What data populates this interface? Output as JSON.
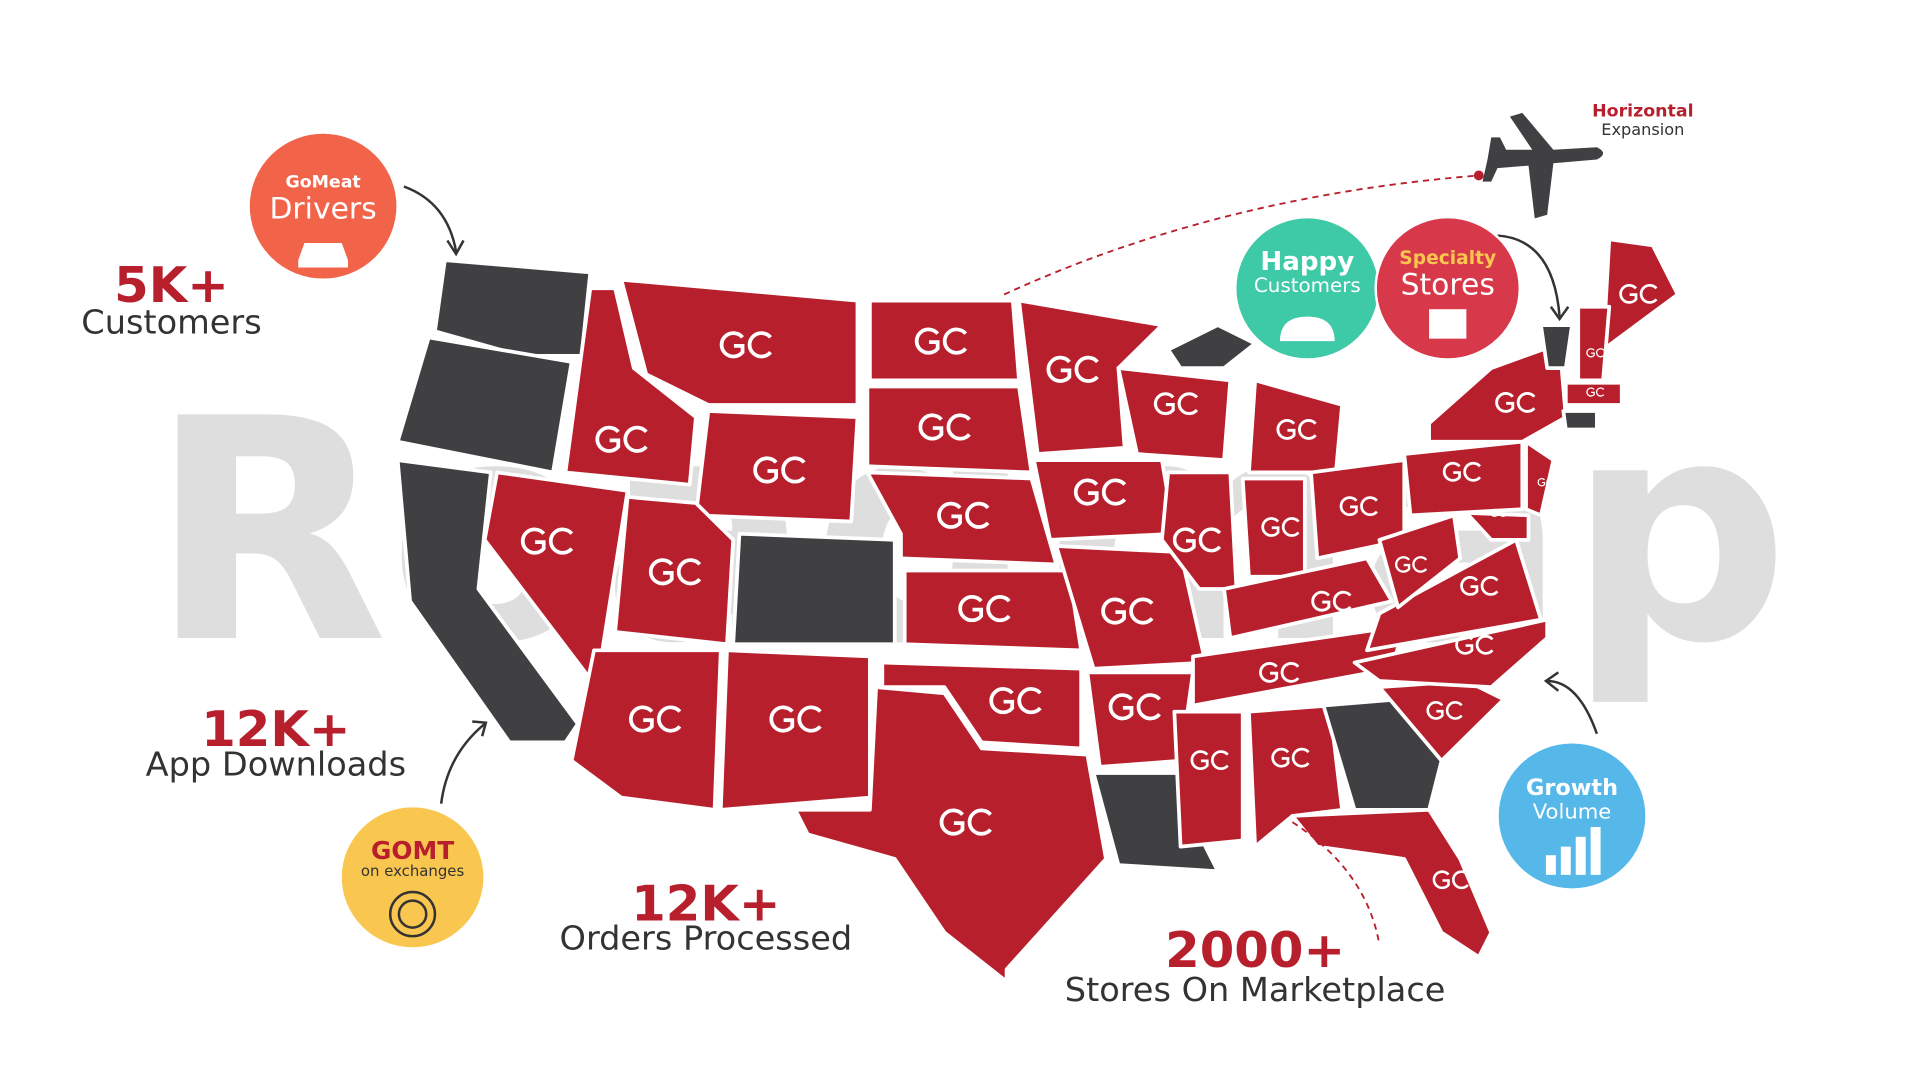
{
  "background_title": "Roadmap",
  "stats": [
    {
      "value": "5K+",
      "label": "Customers"
    },
    {
      "value": "12K+",
      "label": "App Downloads"
    },
    {
      "value": "12K+",
      "label": "Orders Processed"
    },
    {
      "value": "2000+",
      "label": "Stores On Marketplace"
    }
  ],
  "badges": [
    {
      "title": "GoMeat",
      "subtitle": "Drivers"
    },
    {
      "title": "Happy",
      "subtitle": "Customers"
    },
    {
      "title": "Specialty",
      "subtitle": "Stores"
    },
    {
      "title": "Growth",
      "subtitle": "Volume"
    },
    {
      "title": "GOMT",
      "subtitle": "on exchanges"
    }
  ],
  "expansion": {
    "title": "Horizontal",
    "subtitle": "Expansion"
  }
}
